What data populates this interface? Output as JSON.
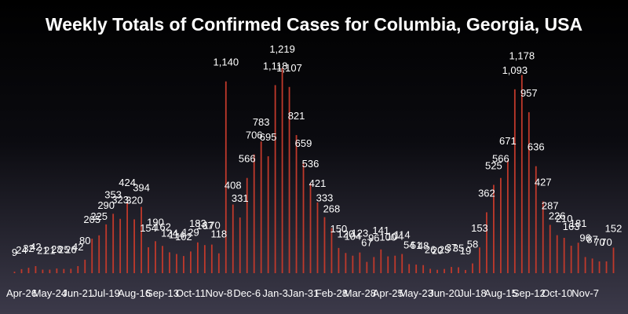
{
  "chart_data": {
    "type": "bar",
    "title": "Weekly Totals of Confirmed Cases for Columbia, Georgia, USA",
    "xlabel": "",
    "ylabel": "",
    "ylim": [
      0,
      1260
    ],
    "grid": false,
    "legend": "none",
    "bar_color": "#c0392b",
    "x_tick_labels": [
      "Apr-26",
      "May-24",
      "Jun-21",
      "Jul-19",
      "Aug-16",
      "Sep-13",
      "Oct-11",
      "Nov-8",
      "Dec-6",
      "Jan-3",
      "Jan-31",
      "Feb-28",
      "Mar-28",
      "Apr-25",
      "May-23",
      "Jun-20",
      "Jul-18",
      "Aug-15",
      "Sep-12",
      "Oct-10",
      "Nov-7"
    ],
    "values": [
      9,
      24,
      32,
      42,
      21,
      21,
      28,
      25,
      26,
      42,
      80,
      205,
      225,
      290,
      353,
      323,
      424,
      320,
      394,
      154,
      190,
      162,
      124,
      114,
      102,
      129,
      183,
      167,
      170,
      118,
      1140,
      408,
      331,
      566,
      706,
      783,
      695,
      1118,
      1219,
      1107,
      821,
      659,
      536,
      421,
      333,
      268,
      150,
      120,
      104,
      123,
      67,
      96,
      141,
      100,
      104,
      114,
      54,
      51,
      48,
      26,
      20,
      25,
      37,
      35,
      19,
      58,
      153,
      362,
      525,
      566,
      671,
      1093,
      1178,
      957,
      636,
      427,
      287,
      226,
      210,
      163,
      181,
      96,
      87,
      70,
      70,
      152
    ]
  }
}
